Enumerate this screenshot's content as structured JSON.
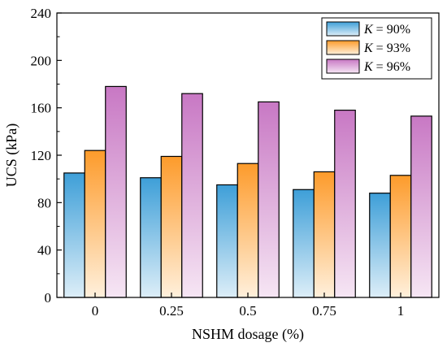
{
  "chart_data": {
    "type": "bar",
    "xlabel": "NSHM dosage (%)",
    "ylabel": "UCS (kPa)",
    "ylim": [
      0,
      240
    ],
    "yticks": [
      0,
      40,
      80,
      120,
      160,
      200,
      240
    ],
    "grid": false,
    "legend_position": "top-right",
    "categories": [
      "0",
      "0.25",
      "0.5",
      "0.75",
      "1"
    ],
    "series": [
      {
        "name": "K = 90%",
        "legend_var": "K",
        "legend_rest": " = 90%",
        "values": [
          105,
          101,
          95,
          91,
          88
        ],
        "color_top": "#3e9fd8",
        "color_bottom": "#ddeef8"
      },
      {
        "name": "K = 93%",
        "legend_var": "K",
        "legend_rest": " = 93%",
        "values": [
          124,
          119,
          113,
          106,
          103
        ],
        "color_top": "#fd9b2b",
        "color_bottom": "#fff0dc"
      },
      {
        "name": "K = 96%",
        "legend_var": "K",
        "legend_rest": " = 96%",
        "values": [
          178,
          172,
          165,
          158,
          153
        ],
        "color_top": "#c878c4",
        "color_bottom": "#f6e6f4"
      }
    ]
  }
}
